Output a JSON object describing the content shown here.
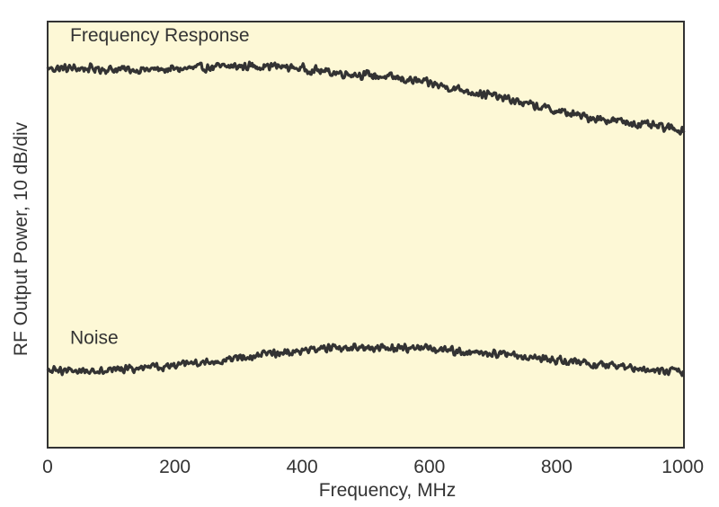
{
  "chart_data": {
    "type": "line",
    "title": "",
    "xlabel": "Frequency, MHz",
    "ylabel": "RF Output Power, 10 dB/div",
    "xlim": [
      0,
      1000
    ],
    "ylim": [
      0,
      100
    ],
    "xticks": [
      0,
      200,
      400,
      600,
      800,
      1000
    ],
    "grid": false,
    "legend": "none",
    "plot_background": "#fdf8d6",
    "line_color": "#333333",
    "series": [
      {
        "name": "Frequency Response",
        "x": [
          0,
          50,
          100,
          150,
          200,
          250,
          300,
          350,
          400,
          450,
          500,
          550,
          600,
          650,
          700,
          750,
          800,
          850,
          900,
          950,
          1000
        ],
        "values": [
          89,
          89,
          88.8,
          88.7,
          88.8,
          89.2,
          89.5,
          89.6,
          89,
          88,
          87.5,
          86.7,
          85.5,
          84,
          82.6,
          80.8,
          79,
          77.5,
          76.6,
          75.5,
          74.5
        ],
        "noise_amplitude": 1.2
      },
      {
        "name": "Noise",
        "x": [
          0,
          50,
          100,
          150,
          200,
          250,
          300,
          350,
          400,
          450,
          500,
          550,
          600,
          650,
          700,
          750,
          800,
          850,
          900,
          950,
          1000
        ],
        "values": [
          18,
          18.1,
          18.3,
          18.6,
          19.2,
          20,
          21,
          22,
          22.8,
          23.3,
          23.5,
          23.5,
          23.2,
          22.6,
          22,
          21.3,
          20.5,
          19.7,
          19,
          18.3,
          17.8
        ],
        "noise_amplitude": 1.1
      }
    ]
  }
}
